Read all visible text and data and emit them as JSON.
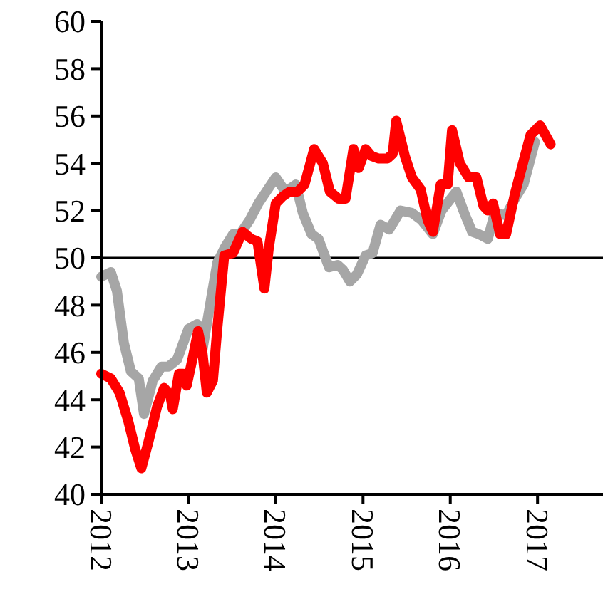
{
  "chart_data": {
    "type": "line",
    "xlim": [
      2012,
      2017.75
    ],
    "xticks": [
      2012,
      2013,
      2014,
      2015,
      2016,
      2017
    ],
    "ylim": [
      40,
      60
    ],
    "yticks": [
      40,
      42,
      44,
      46,
      48,
      50,
      52,
      54,
      56,
      58,
      60
    ],
    "grid": false,
    "marker": "none",
    "line_style": "solid",
    "ref_lines": [
      {
        "axis": "y",
        "value": 50,
        "color": "#000000"
      }
    ],
    "series": [
      {
        "color": "#a6a6a6",
        "x": [
          2012,
          2012.11,
          2012.18,
          2012.26,
          2012.34,
          2012.43,
          2012.49,
          2012.59,
          2012.69,
          2012.77,
          2012.87,
          2013,
          2013.1,
          2013.16,
          2013.26,
          2013.33,
          2013.41,
          2013.51,
          2013.59,
          2013.7,
          2013.8,
          2014,
          2014.11,
          2014.23,
          2014.31,
          2014.41,
          2014.49,
          2014.61,
          2014.71,
          2014.77,
          2014.85,
          2014.93,
          2015.03,
          2015.11,
          2015.2,
          2015.3,
          2015.43,
          2015.56,
          2015.67,
          2015.8,
          2015.9,
          2016.07,
          2016.16,
          2016.25,
          2016.33,
          2016.43,
          2016.51,
          2016.64,
          2016.74,
          2016.84,
          2016.97
        ],
        "values": [
          49.2,
          49.4,
          48.6,
          46.4,
          45.2,
          44.9,
          43.4,
          44.8,
          45.4,
          45.4,
          45.7,
          47.0,
          47.2,
          46.1,
          48.3,
          49.8,
          50.4,
          51.0,
          51.0,
          51.6,
          52.3,
          53.4,
          52.8,
          53.1,
          51.9,
          51.0,
          50.8,
          49.6,
          49.7,
          49.5,
          49.0,
          49.3,
          50.1,
          50.2,
          51.4,
          51.2,
          52.0,
          51.9,
          51.6,
          51.0,
          52.0,
          52.8,
          51.9,
          51.1,
          51.0,
          50.8,
          51.9,
          51.8,
          52.5,
          53.1,
          54.9
        ]
      },
      {
        "color": "#ff0000",
        "x": [
          2012,
          2012.11,
          2012.21,
          2012.31,
          2012.39,
          2012.46,
          2012.54,
          2012.64,
          2012.72,
          2012.79,
          2012.82,
          2012.89,
          2012.94,
          2012.98,
          2013.05,
          2013.11,
          2013.16,
          2013.21,
          2013.28,
          2013.33,
          2013.41,
          2013.51,
          2013.62,
          2013.72,
          2013.79,
          2013.87,
          2013.92,
          2014,
          2014.08,
          2014.16,
          2014.25,
          2014.33,
          2014.44,
          2014.54,
          2014.62,
          2014.72,
          2014.8,
          2014.89,
          2014.95,
          2015.03,
          2015.1,
          2015.18,
          2015.28,
          2015.34,
          2015.38,
          2015.48,
          2015.56,
          2015.66,
          2015.74,
          2015.8,
          2015.89,
          2015.97,
          2016.02,
          2016.11,
          2016.21,
          2016.3,
          2016.38,
          2016.43,
          2016.49,
          2016.57,
          2016.64,
          2016.74,
          2016.84,
          2016.92,
          2017.03,
          2017.15
        ],
        "values": [
          45.1,
          44.9,
          44.3,
          43.1,
          41.9,
          41.1,
          42.2,
          43.7,
          44.5,
          44.2,
          43.6,
          45.1,
          45.1,
          44.6,
          45.8,
          46.9,
          46.0,
          44.3,
          44.8,
          47.0,
          50.1,
          50.2,
          51.1,
          50.8,
          50.7,
          48.7,
          50.4,
          52.3,
          52.6,
          52.8,
          52.8,
          53.1,
          54.6,
          54.0,
          52.8,
          52.5,
          52.5,
          54.6,
          53.8,
          54.6,
          54.3,
          54.2,
          54.2,
          54.4,
          55.8,
          54.3,
          53.4,
          52.9,
          51.6,
          51.1,
          53.1,
          53.1,
          55.4,
          54.0,
          53.4,
          53.4,
          52.2,
          52.0,
          52.3,
          51.0,
          51.0,
          52.7,
          54.1,
          55.2,
          55.6,
          54.8
        ]
      }
    ]
  }
}
